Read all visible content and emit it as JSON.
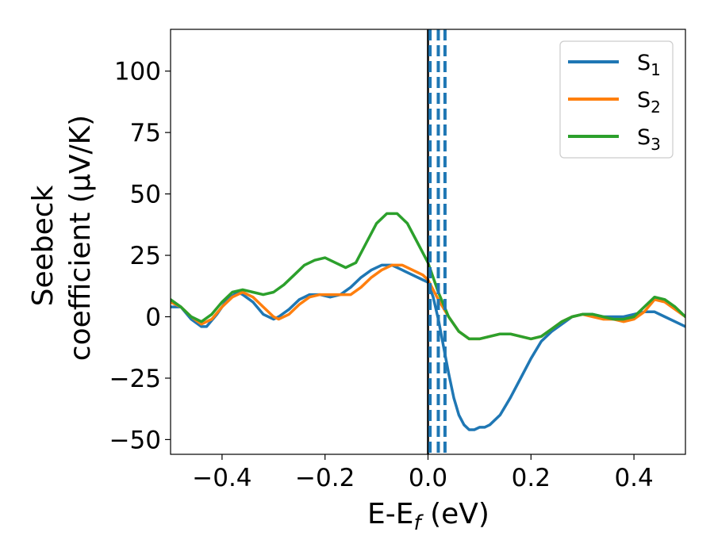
{
  "chart_data": {
    "type": "line",
    "xlabel_main": "E-E",
    "xlabel_sub": "f",
    "xlabel_unit": " (eV)",
    "ylabel_line1": "Seebeck",
    "ylabel_line2": "coefficient  (μV/K)",
    "xlim": [
      -0.5,
      0.5
    ],
    "ylim": [
      -56,
      117
    ],
    "xticks": [
      -0.4,
      -0.2,
      0.0,
      0.2,
      0.4
    ],
    "xtick_labels": [
      "−0.4",
      "−0.2",
      "0.0",
      "0.2",
      "0.4"
    ],
    "yticks": [
      -50,
      -25,
      0,
      25,
      50,
      75,
      100
    ],
    "ytick_labels": [
      "−50",
      "−25",
      "0",
      "25",
      "50",
      "75",
      "100"
    ],
    "grid": false,
    "legend_position": "top-right",
    "vlines": [
      {
        "x": 0.0,
        "style": "solid",
        "color": "#000000"
      },
      {
        "x": 0.004,
        "style": "dashed",
        "color": "#1f77b4"
      },
      {
        "x": 0.02,
        "style": "dashed",
        "color": "#1f77b4"
      },
      {
        "x": 0.033,
        "style": "dashed",
        "color": "#1f77b4"
      }
    ],
    "series": [
      {
        "name": "S",
        "sub": "1",
        "color": "#1f77b4",
        "x": [
          -0.5,
          -0.48,
          -0.46,
          -0.44,
          -0.43,
          -0.41,
          -0.39,
          -0.37,
          -0.36,
          -0.34,
          -0.32,
          -0.3,
          -0.29,
          -0.27,
          -0.25,
          -0.23,
          -0.21,
          -0.19,
          -0.17,
          -0.15,
          -0.13,
          -0.11,
          -0.09,
          -0.07,
          -0.05,
          -0.03,
          -0.01,
          0.0,
          0.01,
          0.02,
          0.03,
          0.04,
          0.05,
          0.06,
          0.07,
          0.08,
          0.09,
          0.1,
          0.11,
          0.12,
          0.14,
          0.16,
          0.18,
          0.2,
          0.22,
          0.24,
          0.26,
          0.28,
          0.3,
          0.32,
          0.34,
          0.36,
          0.38,
          0.4,
          0.42,
          0.44,
          0.46,
          0.48,
          0.5
        ],
        "y": [
          4,
          4,
          -1,
          -4,
          -4,
          1,
          7,
          10,
          9,
          6,
          1,
          -1,
          0,
          3,
          7,
          9,
          9,
          8,
          9,
          12,
          16,
          19,
          21,
          21,
          19,
          17,
          15,
          14,
          8,
          -1,
          -12,
          -23,
          -33,
          -40,
          -44,
          -46,
          -46,
          -45,
          -45,
          -44,
          -40,
          -33,
          -25,
          -17,
          -10,
          -6,
          -3,
          0,
          1,
          1,
          0,
          0,
          0,
          1,
          2,
          2,
          0,
          -2,
          -4
        ]
      },
      {
        "name": "S",
        "sub": "2",
        "color": "#ff7f0e",
        "x": [
          -0.5,
          -0.48,
          -0.46,
          -0.44,
          -0.42,
          -0.4,
          -0.38,
          -0.36,
          -0.34,
          -0.32,
          -0.3,
          -0.29,
          -0.27,
          -0.25,
          -0.23,
          -0.21,
          -0.19,
          -0.17,
          -0.15,
          -0.13,
          -0.11,
          -0.09,
          -0.07,
          -0.05,
          -0.03,
          -0.01,
          0.0,
          0.02,
          0.04,
          0.06,
          0.08,
          0.1,
          0.12,
          0.14,
          0.16,
          0.18,
          0.2,
          0.22,
          0.24,
          0.26,
          0.28,
          0.3,
          0.32,
          0.34,
          0.36,
          0.38,
          0.4,
          0.42,
          0.44,
          0.46,
          0.48,
          0.5
        ],
        "y": [
          6,
          4,
          0,
          -3,
          -1,
          4,
          8,
          10,
          8,
          4,
          0,
          -1,
          1,
          5,
          8,
          9,
          9,
          9,
          9,
          12,
          16,
          19,
          21,
          21,
          19,
          17,
          15,
          7,
          0,
          -6,
          -9,
          -9,
          -8,
          -7,
          -7,
          -8,
          -9,
          -8,
          -5,
          -2,
          0,
          1,
          0,
          -1,
          -1,
          -2,
          -1,
          2,
          7,
          6,
          3,
          0
        ]
      },
      {
        "name": "S",
        "sub": "3",
        "color": "#2ca02c",
        "x": [
          -0.5,
          -0.48,
          -0.46,
          -0.44,
          -0.42,
          -0.4,
          -0.38,
          -0.36,
          -0.34,
          -0.32,
          -0.3,
          -0.28,
          -0.26,
          -0.24,
          -0.22,
          -0.2,
          -0.18,
          -0.16,
          -0.14,
          -0.12,
          -0.1,
          -0.08,
          -0.06,
          -0.04,
          -0.02,
          0.0,
          0.02,
          0.04,
          0.06,
          0.08,
          0.1,
          0.12,
          0.14,
          0.16,
          0.18,
          0.2,
          0.22,
          0.24,
          0.26,
          0.28,
          0.3,
          0.32,
          0.34,
          0.36,
          0.38,
          0.4,
          0.42,
          0.44,
          0.46,
          0.48,
          0.5
        ],
        "y": [
          7,
          4,
          0,
          -2,
          1,
          6,
          10,
          11,
          10,
          9,
          10,
          13,
          17,
          21,
          23,
          24,
          22,
          20,
          22,
          30,
          38,
          42,
          42,
          38,
          30,
          22,
          10,
          0,
          -6,
          -9,
          -9,
          -8,
          -7,
          -7,
          -8,
          -9,
          -8,
          -5,
          -2,
          0,
          1,
          1,
          0,
          -1,
          -1,
          0,
          4,
          8,
          7,
          4,
          0
        ]
      }
    ]
  }
}
